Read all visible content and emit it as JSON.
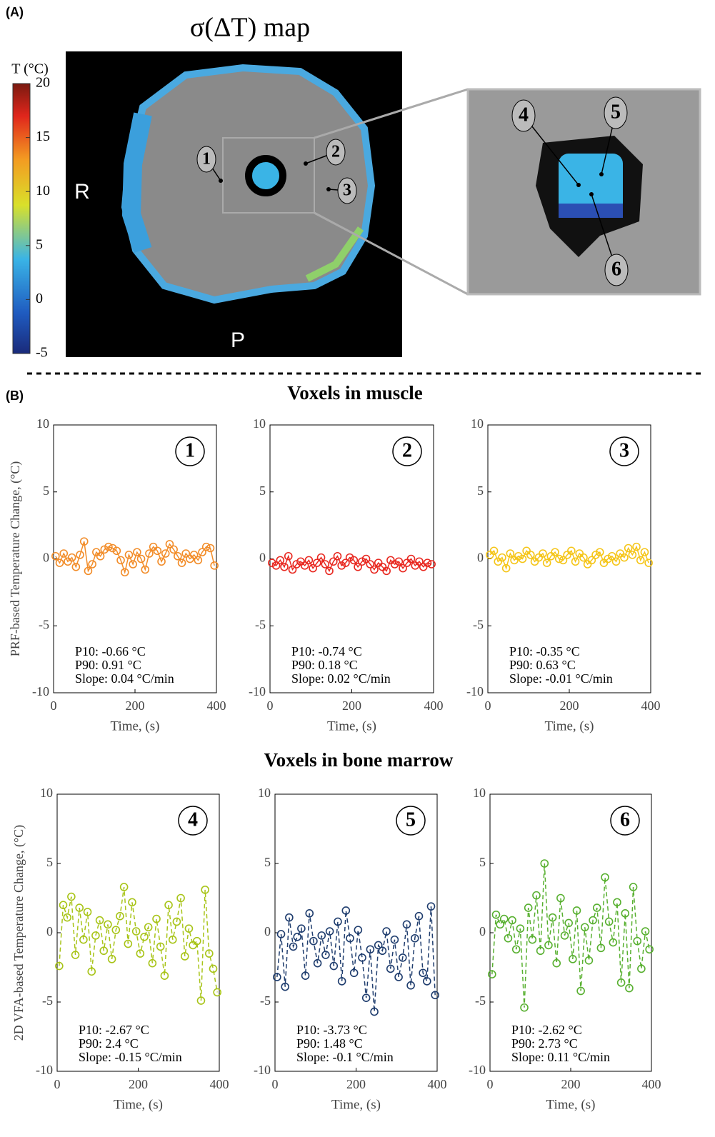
{
  "panel_a": {
    "label": "(A)",
    "title": "σ(ΔT) map",
    "colorbar": {
      "title": "T (°C)",
      "ylim": [
        -5,
        20
      ],
      "yticks": [
        -5,
        0,
        5,
        10,
        15,
        20
      ]
    },
    "orientation": [
      "R",
      "P"
    ],
    "markers": [
      "1",
      "2",
      "3",
      "4",
      "5",
      "6"
    ]
  },
  "panel_b": {
    "label": "(B)",
    "muscle_title": "Voxels in muscle",
    "marrow_title": "Voxels in bone marrow"
  },
  "chart_data": [
    {
      "type": "line",
      "panel_label": "1",
      "ylabel": "PRF-based Temperature Change, (°C)",
      "xlabel": "Time, (s)",
      "annotations": [
        "P10: -0.66 °C",
        "P90: 0.91 °C",
        "Slope: 0.04 °C/min"
      ],
      "xlim": [
        0,
        400
      ],
      "xticks": [
        0,
        200,
        400
      ],
      "ylim": [
        -10,
        10
      ],
      "yticks": [
        -10,
        -5,
        0,
        5,
        10
      ],
      "color": "#f28c28",
      "line_style": "solid",
      "marker": "circle",
      "x": [
        5,
        15,
        25,
        35,
        45,
        55,
        65,
        75,
        85,
        95,
        105,
        115,
        125,
        135,
        145,
        155,
        165,
        175,
        185,
        195,
        205,
        215,
        225,
        235,
        245,
        255,
        265,
        275,
        285,
        295,
        305,
        315,
        325,
        335,
        345,
        355,
        365,
        375,
        385,
        395
      ],
      "values": [
        0.2,
        -0.3,
        0.4,
        -0.2,
        0.1,
        -0.6,
        0.3,
        1.3,
        -0.9,
        -0.4,
        0.5,
        0.2,
        0.7,
        0.9,
        0.8,
        0.6,
        -0.1,
        -1.0,
        0.3,
        -0.4,
        0.5,
        0.0,
        -0.8,
        0.4,
        0.9,
        0.6,
        -0.2,
        0.4,
        1.1,
        0.7,
        0.2,
        -0.3,
        0.4,
        0.0,
        0.3,
        -0.1,
        0.5,
        0.9,
        0.8,
        -0.5
      ]
    },
    {
      "type": "line",
      "panel_label": "2",
      "xlabel": "Time, (s)",
      "annotations": [
        "P10: -0.74 °C",
        "P90: 0.18 °C",
        "Slope: 0.02 °C/min"
      ],
      "xlim": [
        0,
        400
      ],
      "xticks": [
        0,
        200,
        400
      ],
      "ylim": [
        -10,
        10
      ],
      "yticks": [
        -10,
        -5,
        0,
        5,
        10
      ],
      "color": "#e8271f",
      "line_style": "solid",
      "marker": "circle",
      "x": [
        5,
        15,
        25,
        35,
        45,
        55,
        65,
        75,
        85,
        95,
        105,
        115,
        125,
        135,
        145,
        155,
        165,
        175,
        185,
        195,
        205,
        215,
        225,
        235,
        245,
        255,
        265,
        275,
        285,
        295,
        305,
        315,
        325,
        335,
        345,
        355,
        365,
        375,
        385,
        395
      ],
      "values": [
        -0.3,
        -0.5,
        -0.1,
        -0.6,
        0.2,
        -0.8,
        -0.4,
        -0.2,
        -0.5,
        -0.1,
        -0.7,
        -0.3,
        0.1,
        -0.4,
        -0.9,
        -0.2,
        0.2,
        -0.5,
        -0.3,
        0.1,
        -0.1,
        -0.6,
        -0.2,
        0.0,
        -0.4,
        -0.8,
        -0.3,
        -0.6,
        -0.9,
        -0.1,
        -0.4,
        -0.2,
        -0.7,
        -0.3,
        0.0,
        -0.5,
        -0.2,
        -0.6,
        -0.3,
        -0.4
      ]
    },
    {
      "type": "line",
      "panel_label": "3",
      "xlabel": "Time, (s)",
      "annotations": [
        "P10: -0.35 °C",
        "P90: 0.63 °C",
        "Slope: -0.01 °C/min"
      ],
      "xlim": [
        0,
        400
      ],
      "xticks": [
        0,
        200,
        400
      ],
      "ylim": [
        -10,
        10
      ],
      "yticks": [
        -10,
        -5,
        0,
        5,
        10
      ],
      "color": "#f5c518",
      "line_style": "solid",
      "marker": "circle",
      "x": [
        5,
        15,
        25,
        35,
        45,
        55,
        65,
        75,
        85,
        95,
        105,
        115,
        125,
        135,
        145,
        155,
        165,
        175,
        185,
        195,
        205,
        215,
        225,
        235,
        245,
        255,
        265,
        275,
        285,
        295,
        305,
        315,
        325,
        335,
        345,
        355,
        365,
        375,
        385,
        395
      ],
      "values": [
        0.3,
        0.6,
        -0.2,
        0.1,
        -0.7,
        0.4,
        -0.1,
        0.2,
        0.0,
        0.6,
        0.3,
        -0.2,
        0.1,
        0.4,
        -0.3,
        0.2,
        0.5,
        0.0,
        -0.1,
        0.3,
        0.6,
        -0.2,
        0.4,
        0.1,
        -0.4,
        -0.1,
        0.3,
        0.5,
        -0.3,
        0.0,
        0.2,
        -0.2,
        0.4,
        0.1,
        0.8,
        0.3,
        0.9,
        -0.1,
        0.5,
        -0.3
      ]
    },
    {
      "type": "line",
      "panel_label": "4",
      "ylabel": "2D VFA-based Temperature Change, (°C)",
      "xlabel": "Time, (s)",
      "annotations": [
        "P10: -2.67 °C",
        "P90: 2.4 °C",
        "Slope: -0.15 °C/min"
      ],
      "xlim": [
        0,
        400
      ],
      "xticks": [
        0,
        200,
        400
      ],
      "ylim": [
        -10,
        10
      ],
      "yticks": [
        -10,
        -5,
        0,
        5,
        10
      ],
      "color": "#a8c418",
      "line_style": "dashed",
      "marker": "circle",
      "x": [
        5,
        15,
        25,
        35,
        45,
        55,
        65,
        75,
        85,
        95,
        105,
        115,
        125,
        135,
        145,
        155,
        165,
        175,
        185,
        195,
        205,
        215,
        225,
        235,
        245,
        255,
        265,
        275,
        285,
        295,
        305,
        315,
        325,
        335,
        345,
        355,
        365,
        375,
        385,
        395
      ],
      "values": [
        -2.4,
        2.0,
        1.1,
        2.6,
        -1.6,
        1.8,
        -0.5,
        1.5,
        -2.8,
        -0.2,
        0.9,
        -1.3,
        0.6,
        -1.9,
        0.2,
        1.2,
        3.3,
        -0.8,
        2.2,
        0.1,
        -1.5,
        -0.3,
        0.4,
        -2.2,
        1.0,
        -1.0,
        -3.1,
        2.0,
        -0.5,
        0.8,
        2.5,
        -1.7,
        0.3,
        -0.9,
        -0.6,
        -4.9,
        3.1,
        -1.5,
        -2.6,
        -4.3
      ]
    },
    {
      "type": "line",
      "panel_label": "5",
      "xlabel": "Time, (s)",
      "annotations": [
        "P10: -3.73 °C",
        "P90: 1.48 °C",
        "Slope: -0.1 °C/min"
      ],
      "xlim": [
        0,
        400
      ],
      "xticks": [
        0,
        200,
        400
      ],
      "ylim": [
        -10,
        10
      ],
      "yticks": [
        -10,
        -5,
        0,
        5,
        10
      ],
      "color": "#1f3d6e",
      "line_style": "dashed",
      "marker": "circle",
      "x": [
        5,
        15,
        25,
        35,
        45,
        55,
        65,
        75,
        85,
        95,
        105,
        115,
        125,
        135,
        145,
        155,
        165,
        175,
        185,
        195,
        205,
        215,
        225,
        235,
        245,
        255,
        265,
        275,
        285,
        295,
        305,
        315,
        325,
        335,
        345,
        355,
        365,
        375,
        385,
        395
      ],
      "values": [
        -3.2,
        -0.1,
        -3.9,
        1.1,
        -1.0,
        -0.3,
        0.3,
        -3.1,
        1.4,
        -0.6,
        -2.2,
        -0.2,
        -1.6,
        0.1,
        -2.4,
        0.8,
        -3.5,
        1.6,
        -0.4,
        -2.9,
        0.2,
        -1.8,
        -4.7,
        -1.2,
        -5.7,
        -0.9,
        -1.3,
        0.1,
        -2.6,
        -0.5,
        -3.2,
        -1.8,
        0.6,
        -3.8,
        -0.4,
        1.2,
        -2.9,
        -3.5,
        1.9,
        -4.5
      ]
    },
    {
      "type": "line",
      "panel_label": "6",
      "xlabel": "Time, (s)",
      "annotations": [
        "P10: -2.62 °C",
        "P90: 2.73 °C",
        "Slope: 0.11 °C/min"
      ],
      "xlim": [
        0,
        400
      ],
      "xticks": [
        0,
        200,
        400
      ],
      "ylim": [
        -10,
        10
      ],
      "yticks": [
        -10,
        -5,
        0,
        5,
        10
      ],
      "color": "#58b030",
      "line_style": "dashed",
      "marker": "circle",
      "x": [
        5,
        15,
        25,
        35,
        45,
        55,
        65,
        75,
        85,
        95,
        105,
        115,
        125,
        135,
        145,
        155,
        165,
        175,
        185,
        195,
        205,
        215,
        225,
        235,
        245,
        255,
        265,
        275,
        285,
        295,
        305,
        315,
        325,
        335,
        345,
        355,
        365,
        375,
        385,
        395
      ],
      "values": [
        -3.0,
        1.3,
        0.6,
        1.0,
        -0.4,
        0.9,
        -1.2,
        0.3,
        -5.4,
        1.8,
        -0.5,
        2.7,
        -1.3,
        5.0,
        -0.9,
        1.1,
        -2.2,
        2.5,
        -0.2,
        0.7,
        -1.9,
        1.6,
        -4.2,
        0.4,
        -2.0,
        0.9,
        1.8,
        -1.1,
        4.0,
        0.8,
        -0.7,
        2.2,
        -3.6,
        1.4,
        -4.0,
        3.3,
        -0.6,
        -2.6,
        0.1,
        -1.2
      ]
    }
  ]
}
